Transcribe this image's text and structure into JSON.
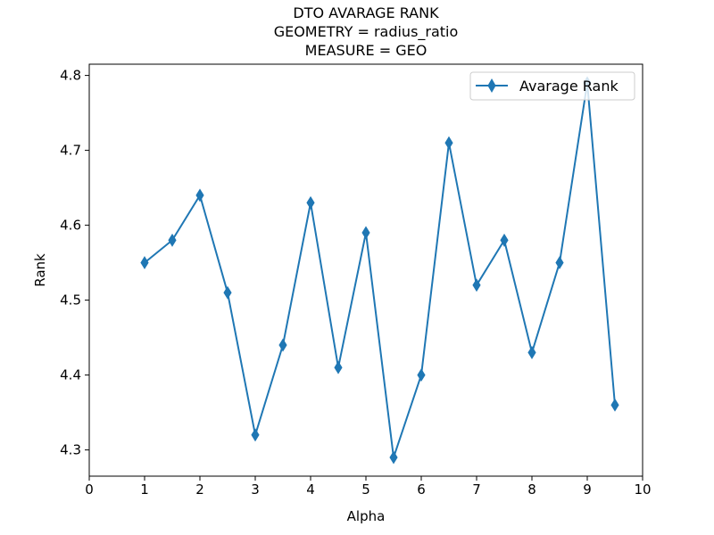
{
  "chart_data": {
    "type": "line",
    "title_lines": [
      "DTO AVARAGE RANK",
      "GEOMETRY = radius_ratio",
      "MEASURE = GEO"
    ],
    "xlabel": "Alpha",
    "ylabel": "Rank",
    "xlim": [
      0,
      10
    ],
    "ylim": [
      4.265,
      4.815
    ],
    "xticks": [
      0,
      1,
      2,
      3,
      4,
      5,
      6,
      7,
      8,
      9,
      10
    ],
    "xtick_labels": [
      "0",
      "1",
      "2",
      "3",
      "4",
      "5",
      "6",
      "7",
      "8",
      "9",
      "10"
    ],
    "yticks": [
      4.3,
      4.4,
      4.5,
      4.6,
      4.7,
      4.8
    ],
    "ytick_labels": [
      "4.3",
      "4.4",
      "4.5",
      "4.6",
      "4.7",
      "4.8"
    ],
    "grid": false,
    "legend_position": "top-right",
    "series": [
      {
        "name": "Avarage Rank",
        "color": "#1f77b4",
        "marker": "thin-diamond",
        "x": [
          1,
          1.5,
          2,
          2.5,
          3,
          3.5,
          4,
          4.5,
          5,
          5.5,
          6,
          6.5,
          7,
          7.5,
          8,
          8.5,
          9,
          9.5
        ],
        "y": [
          4.55,
          4.58,
          4.64,
          4.51,
          4.32,
          4.44,
          4.63,
          4.41,
          4.59,
          4.29,
          4.4,
          4.71,
          4.52,
          4.58,
          4.43,
          4.55,
          4.79,
          4.36
        ]
      }
    ]
  }
}
